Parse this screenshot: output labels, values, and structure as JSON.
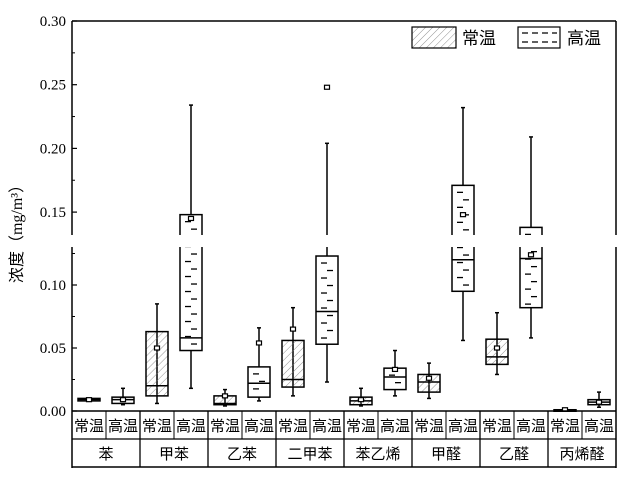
{
  "chart_data": {
    "type": "box",
    "ylabel": "浓度（mg/m³）",
    "ylim": [
      0,
      0.3
    ],
    "y_axis_break": [
      0.132,
      0.13
    ],
    "y_ticks_upper": [
      "0.15",
      "0.20",
      "0.25",
      "0.30"
    ],
    "y_ticks_lower": [
      "0.00",
      "0.05",
      "0.10"
    ],
    "legend": {
      "position": "top-right",
      "entries": [
        {
          "name": "常温",
          "pattern": "diagonal-hatch"
        },
        {
          "name": "高温",
          "pattern": "dashes"
        }
      ]
    },
    "groups": [
      "苯",
      "甲苯",
      "乙苯",
      "二甲苯",
      "苯乙烯",
      "甲醛",
      "乙醛",
      "丙烯醛"
    ],
    "conditions": [
      "常温",
      "高温"
    ],
    "boxes": [
      {
        "group": "苯",
        "condition": "常温",
        "min": 0.008,
        "q1": 0.008,
        "median": 0.009,
        "q3": 0.01,
        "max": 0.01,
        "mean": 0.009
      },
      {
        "group": "苯",
        "condition": "高温",
        "min": 0.005,
        "q1": 0.006,
        "median": 0.009,
        "q3": 0.011,
        "max": 0.018,
        "mean": 0.009
      },
      {
        "group": "甲苯",
        "condition": "常温",
        "min": 0.006,
        "q1": 0.012,
        "median": 0.02,
        "q3": 0.063,
        "max": 0.085,
        "mean": 0.05
      },
      {
        "group": "甲苯",
        "condition": "高温",
        "min": 0.018,
        "q1": 0.048,
        "median": 0.058,
        "q3": 0.148,
        "max": 0.234,
        "mean": 0.145
      },
      {
        "group": "乙苯",
        "condition": "常温",
        "min": 0.004,
        "q1": 0.005,
        "median": 0.006,
        "q3": 0.012,
        "max": 0.017,
        "mean": 0.012
      },
      {
        "group": "乙苯",
        "condition": "高温",
        "min": 0.008,
        "q1": 0.011,
        "median": 0.022,
        "q3": 0.035,
        "max": 0.066,
        "mean": 0.054
      },
      {
        "group": "二甲苯",
        "condition": "常温",
        "min": 0.012,
        "q1": 0.019,
        "median": 0.025,
        "q3": 0.056,
        "max": 0.082,
        "mean": 0.065
      },
      {
        "group": "二甲苯",
        "condition": "高温",
        "min": 0.023,
        "q1": 0.053,
        "median": 0.079,
        "q3": 0.123,
        "max": 0.204,
        "mean": 0.248
      },
      {
        "group": "苯乙烯",
        "condition": "常温",
        "min": 0.004,
        "q1": 0.005,
        "median": 0.008,
        "q3": 0.011,
        "max": 0.018,
        "mean": 0.009
      },
      {
        "group": "苯乙烯",
        "condition": "高温",
        "min": 0.012,
        "q1": 0.017,
        "median": 0.027,
        "q3": 0.034,
        "max": 0.048,
        "mean": 0.033
      },
      {
        "group": "甲醛",
        "condition": "常温",
        "min": 0.01,
        "q1": 0.015,
        "median": 0.023,
        "q3": 0.029,
        "max": 0.038,
        "mean": 0.026
      },
      {
        "group": "甲醛",
        "condition": "高温",
        "min": 0.056,
        "q1": 0.095,
        "median": 0.12,
        "q3": 0.171,
        "max": 0.232,
        "mean": 0.148
      },
      {
        "group": "乙醛",
        "condition": "常温",
        "min": 0.029,
        "q1": 0.037,
        "median": 0.043,
        "q3": 0.057,
        "max": 0.078,
        "mean": 0.05
      },
      {
        "group": "乙醛",
        "condition": "高温",
        "min": 0.058,
        "q1": 0.082,
        "median": 0.121,
        "q3": 0.138,
        "max": 0.209,
        "mean": 0.124
      },
      {
        "group": "丙烯醛",
        "condition": "常温",
        "min": 0.001,
        "q1": 0.001,
        "median": 0.001,
        "q3": 0.001,
        "max": 0.001,
        "mean": 0.001
      },
      {
        "group": "丙烯醛",
        "condition": "高温",
        "min": 0.003,
        "q1": 0.005,
        "median": 0.007,
        "q3": 0.009,
        "max": 0.015,
        "mean": 0.007
      }
    ]
  }
}
